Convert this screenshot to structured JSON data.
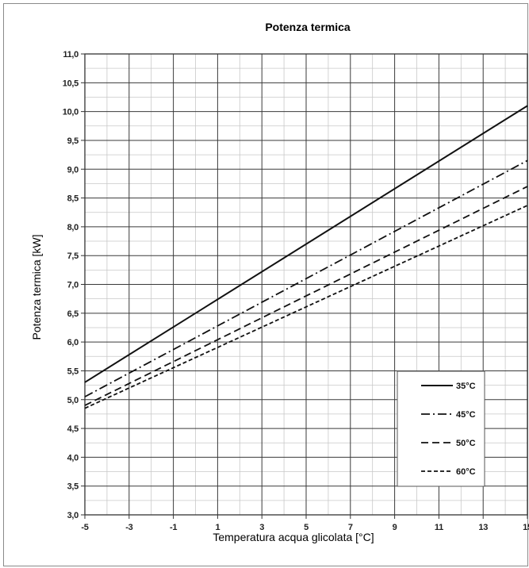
{
  "chart_data": {
    "type": "line",
    "title": "Potenza termica",
    "xlabel": "Temperatura acqua glicolata [°C]",
    "ylabel": "Potenza termica [kW]",
    "xlim": [
      -5,
      15
    ],
    "ylim": [
      3.0,
      11.0
    ],
    "x_ticks": [
      "-5",
      "-3",
      "-1",
      "1",
      "3",
      "5",
      "7",
      "9",
      "11",
      "13",
      "15"
    ],
    "y_ticks": [
      "3,0",
      "3,5",
      "4,0",
      "4,5",
      "5,0",
      "5,5",
      "6,0",
      "6,5",
      "7,0",
      "7,5",
      "8,0",
      "8,5",
      "9,0",
      "9,5",
      "10,0",
      "10,5",
      "11,0"
    ],
    "grid": true,
    "legend_position": "bottom-right",
    "series": [
      {
        "name": "35°C",
        "style": "solid",
        "x": [
          -5,
          15
        ],
        "values": [
          5.3,
          10.1
        ]
      },
      {
        "name": "45°C",
        "style": "dash-dot",
        "x": [
          -5,
          15
        ],
        "values": [
          5.05,
          9.15
        ]
      },
      {
        "name": "50°C",
        "style": "dashed",
        "x": [
          -5,
          15
        ],
        "values": [
          4.9,
          8.7
        ]
      },
      {
        "name": "60°C",
        "style": "short-dashed",
        "x": [
          -5,
          15
        ],
        "values": [
          4.85,
          8.37
        ]
      }
    ]
  }
}
